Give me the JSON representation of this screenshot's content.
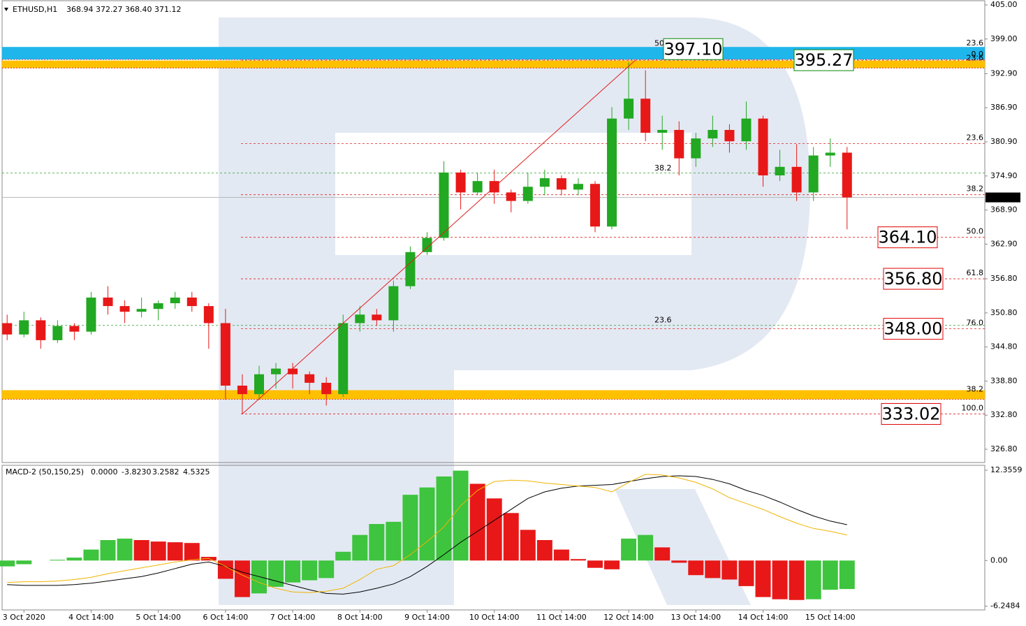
{
  "chart_data": [
    {
      "type": "candlestick",
      "title": "ETHUSD,H1",
      "last_bar": [
        {
          "value": 368.94,
          "label": "368.94"
        },
        {
          "value": 372.27,
          "label": "372.27"
        },
        {
          "value": 368.4,
          "label": "368.40"
        },
        {
          "value": 371.12,
          "label": "371.12"
        }
      ],
      "xticks": [
        {
          "value": 1,
          "label": "3 Oct 2020"
        },
        {
          "value": 5,
          "label": "4 Oct 14:00"
        },
        {
          "value": 9,
          "label": "5 Oct 14:00"
        },
        {
          "value": 13,
          "label": "6 Oct 14:00"
        },
        {
          "value": 17,
          "label": "7 Oct 14:00"
        },
        {
          "value": 21,
          "label": "8 Oct 14:00"
        },
        {
          "value": 25,
          "label": "9 Oct 14:00"
        },
        {
          "value": 29,
          "label": "10 Oct 14:00"
        },
        {
          "value": 33,
          "label": "11 Oct 14:00"
        },
        {
          "value": 37,
          "label": "12 Oct 14:00"
        },
        {
          "value": 41,
          "label": "13 Oct 14:00"
        },
        {
          "value": 45,
          "label": "14 Oct 14:00"
        },
        {
          "value": 49,
          "label": "15 Oct 14:00"
        }
      ],
      "xlim": [
        -0.3,
        58.2
      ],
      "open": [
        349,
        347,
        349.5,
        346,
        348.5,
        347.5,
        353.5,
        352,
        351,
        351.5,
        352.5,
        353.5,
        352,
        349,
        338,
        336.5,
        340,
        341,
        340,
        338.5,
        336.5,
        349,
        350.5,
        349.5,
        355.5,
        361.5,
        364,
        375.5,
        372,
        374,
        372,
        370.5,
        373,
        374.5,
        372.5,
        373.5,
        366,
        385,
        388.5,
        382.5,
        383,
        378,
        381.5,
        383,
        381,
        385,
        375,
        376.5,
        372,
        378.5,
        379
      ],
      "high": [
        350.5,
        351,
        350,
        349.5,
        349,
        354.5,
        355.5,
        353,
        353.5,
        353,
        354.5,
        354.5,
        352.5,
        351.5,
        340,
        341.5,
        342,
        342,
        340.5,
        339.5,
        350.5,
        352,
        351.5,
        356.5,
        362.5,
        365,
        377.5,
        376,
        375.5,
        376,
        372.5,
        375.5,
        376,
        375,
        374.5,
        374,
        387,
        394.9,
        393.5,
        385.5,
        384.5,
        382.5,
        385.5,
        384,
        388,
        385.5,
        379.5,
        380.5,
        380,
        381.5,
        380
      ],
      "low": [
        346,
        346.5,
        344.5,
        345.5,
        346,
        347,
        350.5,
        349,
        350,
        349.5,
        351.5,
        351,
        344.5,
        335.5,
        333.02,
        335.5,
        337.5,
        337.5,
        336.5,
        334.5,
        336,
        347.5,
        348.5,
        347.5,
        355,
        361,
        363.5,
        369,
        371.5,
        370,
        368.5,
        370,
        371.5,
        371.5,
        371.5,
        365,
        365.5,
        383,
        381,
        379.5,
        375,
        376.5,
        380,
        379,
        379.5,
        373,
        374,
        370.5,
        370.5,
        376.5,
        365.5
      ],
      "close": [
        347,
        349.5,
        346,
        348.5,
        347.5,
        353.5,
        352,
        351,
        351.5,
        352.5,
        353.5,
        352,
        349,
        338,
        336.5,
        340,
        341,
        340,
        338.5,
        336.5,
        349,
        350.5,
        349.5,
        355.5,
        361.5,
        364,
        375.5,
        372,
        374,
        372,
        370.5,
        373,
        374.5,
        372.5,
        373.5,
        366,
        385,
        388.5,
        382.5,
        383,
        378,
        381.5,
        383,
        381,
        385,
        375,
        376.5,
        372,
        378.5,
        379,
        371.12
      ],
      "up_color": "#22a822",
      "down_color": "#e81818",
      "ylim": [
        324.47,
        405.74
      ],
      "yticks": [
        {
          "value": 405,
          "label": "405.00"
        },
        {
          "value": 399,
          "label": "399.00"
        },
        {
          "value": 392.9,
          "label": "392.90"
        },
        {
          "value": 386.9,
          "label": "386.90"
        },
        {
          "value": 380.9,
          "label": "380.90"
        },
        {
          "value": 374.9,
          "label": "374.90"
        },
        {
          "value": 368.9,
          "label": "368.90"
        },
        {
          "value": 362.9,
          "label": "362.90"
        },
        {
          "value": 356.8,
          "label": "356.80"
        },
        {
          "value": 350.8,
          "label": "350.80"
        },
        {
          "value": 344.8,
          "label": "344.80"
        },
        {
          "value": 338.8,
          "label": "338.80"
        },
        {
          "value": 332.8,
          "label": "332.80"
        },
        {
          "value": 326.8,
          "label": "326.80"
        }
      ],
      "last_price": {
        "value": 371.12,
        "label": "371.12"
      },
      "zones": [
        {
          "from": 395.4,
          "to": 397.6,
          "color": "#1fb6ec",
          "label": "23.6"
        },
        {
          "from": 393.9,
          "to": 395.2,
          "color": "#ffc000",
          "label": "23.6"
        },
        {
          "from": 335.6,
          "to": 337.2,
          "color": "#ffc000",
          "label": "38.2"
        }
      ],
      "green_levels": [
        {
          "value": 397.1,
          "label": "50"
        },
        {
          "value": 375.4,
          "label": "38.2"
        },
        {
          "value": 348.6,
          "label": "23.6"
        }
      ],
      "red_levels": [
        {
          "value": 395.27,
          "label": "0.0"
        },
        {
          "value": 380.6,
          "label": "23.6"
        },
        {
          "value": 371.6,
          "label": "38.2"
        },
        {
          "value": 364.1,
          "label": "50.0"
        },
        {
          "value": 356.8,
          "label": "61.8"
        },
        {
          "value": 348.0,
          "label": "76.0"
        },
        {
          "value": 333.02,
          "label": "100.0"
        }
      ],
      "trend_line": {
        "x": [
          14,
          37.4
        ],
        "y": [
          333.02,
          395.27
        ]
      },
      "annotations": [
        {
          "value": 397.1,
          "label": "397.10",
          "color": "#0a8a0a"
        },
        {
          "value": 395.27,
          "label": "395.27",
          "color": "#0a8a0a"
        },
        {
          "value": 364.1,
          "label": "364.10",
          "color": "#e00000"
        },
        {
          "value": 356.8,
          "label": "356.80",
          "color": "#e00000"
        },
        {
          "value": 348.0,
          "label": "348.00",
          "color": "#e00000"
        },
        {
          "value": 333.02,
          "label": "333.02",
          "color": "#e00000"
        }
      ]
    },
    {
      "type": "macd",
      "title": "MACD-2 (50,150,25)",
      "header": [
        {
          "value": 0,
          "label": "0.0000"
        },
        {
          "value": -3.823,
          "label": "-3.8230"
        },
        {
          "value": 3.2582,
          "label": "3.2582"
        },
        {
          "value": 4.5325,
          "label": "4.5325"
        }
      ],
      "ylim": [
        -6.76,
        13.03
      ],
      "yticks": [
        {
          "value": 12.3559,
          "label": "12.3559"
        },
        {
          "value": 0,
          "label": "0.00"
        },
        {
          "value": -6.2484,
          "label": "-6.2484"
        }
      ],
      "histogram": [
        -0.8,
        -0.5,
        0,
        0.1,
        0.4,
        1.5,
        2.8,
        3.0,
        2.8,
        2.6,
        2.5,
        2.4,
        0.5,
        -2.5,
        -5.0,
        -4.5,
        -3.6,
        -3.0,
        -2.7,
        -2.4,
        1.2,
        3.5,
        5.0,
        5.3,
        9.0,
        10.0,
        11.5,
        12.3,
        10.5,
        8.5,
        6.5,
        4.2,
        2.8,
        1.5,
        0.2,
        -1.0,
        -1.2,
        3.0,
        3.5,
        1.8,
        -0.3,
        -2.0,
        -2.4,
        -2.6,
        -3.5,
        -5.0,
        -5.3,
        -5.4,
        -5.3,
        -4.0,
        -3.9
      ],
      "up_color": "#3ec43e",
      "down_color": "#e81818",
      "series": [
        {
          "color": "#000000",
          "values": [
            -3.3,
            -3.4,
            -3.4,
            -3.4,
            -3.3,
            -3.1,
            -2.8,
            -2.5,
            -2.2,
            -1.7,
            -1.1,
            -0.5,
            -0.2,
            -0.8,
            -1.6,
            -2.2,
            -2.8,
            -3.4,
            -4.0,
            -4.5,
            -4.6,
            -4.3,
            -3.8,
            -3.2,
            -2.2,
            -0.8,
            0.8,
            2.5,
            4.0,
            5.5,
            7.0,
            8.5,
            9.4,
            9.9,
            10.2,
            10.3,
            10.4,
            10.8,
            11.2,
            11.5,
            11.6,
            11.5,
            11.1,
            10.5,
            9.6,
            8.9,
            8.0,
            7.0,
            6.1,
            5.4,
            4.9
          ]
        },
        {
          "color": "#f0b400",
          "values": [
            -3.0,
            -2.9,
            -2.9,
            -2.8,
            -2.6,
            -2.3,
            -1.8,
            -1.4,
            -1.0,
            -0.6,
            -0.2,
            0.1,
            0.3,
            -0.8,
            -2.0,
            -3.0,
            -3.8,
            -4.3,
            -4.4,
            -4.2,
            -3.8,
            -2.6,
            -1.2,
            -0.7,
            0.8,
            2.6,
            4.6,
            7.5,
            9.6,
            10.8,
            11.0,
            10.9,
            10.6,
            10.4,
            10.2,
            10.0,
            9.4,
            10.7,
            11.8,
            11.7,
            11.3,
            10.7,
            9.8,
            8.6,
            7.8,
            7.0,
            6.0,
            5.1,
            4.4,
            4.0,
            3.5
          ]
        }
      ]
    }
  ]
}
